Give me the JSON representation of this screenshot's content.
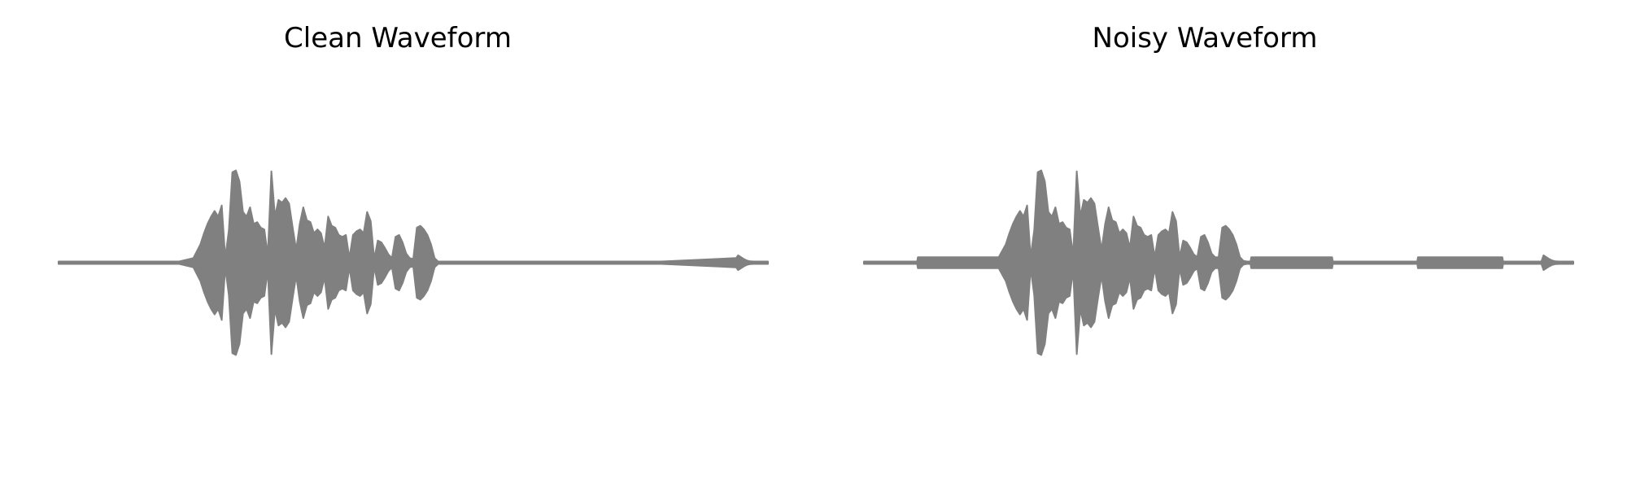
{
  "chart_data": [
    {
      "type": "area",
      "title": "Clean Waveform",
      "xlabel": "",
      "ylabel": "",
      "axes_visible": false,
      "grid": false,
      "color": "#808080",
      "xlim": [
        0,
        1
      ],
      "ylim": [
        -1,
        1
      ],
      "series": [
        {
          "x": [
            0.0,
            0.17,
            0.19,
            0.2,
            0.205,
            0.21,
            0.215,
            0.22,
            0.225,
            0.23,
            0.235,
            0.24,
            0.245,
            0.25,
            0.255,
            0.26,
            0.265,
            0.27,
            0.275,
            0.28,
            0.285,
            0.29,
            0.295,
            0.3,
            0.305,
            0.31,
            0.315,
            0.32,
            0.325,
            0.33,
            0.335,
            0.34,
            0.345,
            0.35,
            0.355,
            0.36,
            0.365,
            0.37,
            0.375,
            0.38,
            0.385,
            0.39,
            0.395,
            0.4,
            0.405,
            0.41,
            0.415,
            0.42,
            0.425,
            0.43,
            0.435,
            0.44,
            0.445,
            0.45,
            0.455,
            0.46,
            0.465,
            0.47,
            0.475,
            0.48,
            0.485,
            0.49,
            0.495,
            0.5,
            0.505,
            0.51,
            0.515,
            0.52,
            0.525,
            0.53,
            0.535,
            0.54,
            0.56,
            0.83,
            0.85,
            0.955,
            0.958,
            0.962,
            0.966,
            0.97,
            0.975,
            0.98,
            1.0
          ],
          "amplitude": [
            0.005,
            0.01,
            0.05,
            0.2,
            0.32,
            0.42,
            0.5,
            0.56,
            0.5,
            0.62,
            0.05,
            0.35,
            0.98,
            1.0,
            0.88,
            0.55,
            0.5,
            0.6,
            0.42,
            0.44,
            0.38,
            0.36,
            0.08,
            0.99,
            0.5,
            0.68,
            0.65,
            0.7,
            0.64,
            0.38,
            0.14,
            0.42,
            0.6,
            0.46,
            0.44,
            0.32,
            0.36,
            0.32,
            0.16,
            0.5,
            0.4,
            0.38,
            0.3,
            0.28,
            0.3,
            0.05,
            0.3,
            0.34,
            0.36,
            0.32,
            0.55,
            0.45,
            0.04,
            0.24,
            0.22,
            0.16,
            0.09,
            0.05,
            0.28,
            0.3,
            0.22,
            0.1,
            0.05,
            0.04,
            0.38,
            0.4,
            0.36,
            0.3,
            0.2,
            0.05,
            0.01,
            0.01,
            0.005,
            0.006,
            0.005,
            0.05,
            0.08,
            0.06,
            0.04,
            0.025,
            0.015,
            0.01,
            0.005
          ]
        }
      ]
    },
    {
      "type": "area",
      "title": "Noisy Waveform",
      "xlabel": "",
      "ylabel": "",
      "axes_visible": false,
      "grid": false,
      "color": "#808080",
      "xlim": [
        0,
        1
      ],
      "ylim": [
        -1,
        1
      ],
      "series": [
        {
          "x": [
            0.0,
            0.075,
            0.076,
            0.19,
            0.2,
            0.205,
            0.21,
            0.215,
            0.22,
            0.225,
            0.23,
            0.235,
            0.24,
            0.245,
            0.25,
            0.255,
            0.26,
            0.265,
            0.27,
            0.275,
            0.28,
            0.285,
            0.29,
            0.295,
            0.3,
            0.305,
            0.31,
            0.315,
            0.32,
            0.325,
            0.33,
            0.335,
            0.34,
            0.345,
            0.35,
            0.355,
            0.36,
            0.365,
            0.37,
            0.375,
            0.38,
            0.385,
            0.39,
            0.395,
            0.4,
            0.405,
            0.41,
            0.415,
            0.42,
            0.425,
            0.43,
            0.435,
            0.44,
            0.445,
            0.45,
            0.455,
            0.46,
            0.465,
            0.47,
            0.475,
            0.48,
            0.485,
            0.49,
            0.495,
            0.5,
            0.505,
            0.51,
            0.515,
            0.52,
            0.525,
            0.53,
            0.535,
            0.54,
            0.545,
            0.546,
            0.66,
            0.661,
            0.78,
            0.781,
            0.9,
            0.901,
            0.955,
            0.958,
            0.962,
            0.966,
            0.97,
            0.975,
            0.98,
            1.0
          ],
          "amplitude": [
            0.008,
            0.008,
            0.06,
            0.06,
            0.2,
            0.32,
            0.42,
            0.5,
            0.56,
            0.5,
            0.62,
            0.06,
            0.35,
            0.98,
            1.0,
            0.88,
            0.55,
            0.5,
            0.6,
            0.42,
            0.44,
            0.38,
            0.36,
            0.08,
            0.99,
            0.5,
            0.68,
            0.65,
            0.7,
            0.64,
            0.38,
            0.14,
            0.42,
            0.6,
            0.46,
            0.44,
            0.32,
            0.36,
            0.32,
            0.16,
            0.5,
            0.4,
            0.38,
            0.3,
            0.28,
            0.3,
            0.06,
            0.3,
            0.34,
            0.36,
            0.32,
            0.55,
            0.45,
            0.06,
            0.24,
            0.22,
            0.16,
            0.09,
            0.06,
            0.28,
            0.3,
            0.22,
            0.1,
            0.06,
            0.06,
            0.38,
            0.4,
            0.36,
            0.3,
            0.2,
            0.06,
            0.02,
            0.01,
            0.01,
            0.06,
            0.06,
            0.008,
            0.008,
            0.06,
            0.06,
            0.008,
            0.008,
            0.08,
            0.06,
            0.04,
            0.025,
            0.015,
            0.01,
            0.008
          ]
        }
      ]
    }
  ]
}
